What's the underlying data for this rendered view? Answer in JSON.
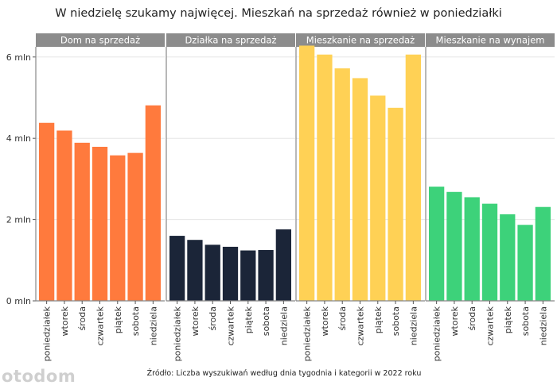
{
  "chart_data": {
    "type": "bar",
    "title": "W niedzielę szukamy najwięcej. Mieszkań na sprzedaż również w poniedziałki",
    "source": "Źródło: Liczba wyszukiwań według dnia tygodnia i kategorii w 2022 roku",
    "logo": "otodom",
    "ylim": [
      0,
      6250000
    ],
    "yticks": [
      0,
      2000000,
      4000000,
      6000000
    ],
    "ytick_labels": [
      "0 mln",
      "2 mln",
      "4 mln",
      "6 mln"
    ],
    "categories": [
      "poniedziałek",
      "wtorek",
      "środa",
      "czwartek",
      "piątek",
      "sobota",
      "niedziela"
    ],
    "panels": [
      {
        "name": "Dom na sprzedaż",
        "color": "#FF7A3D",
        "values": [
          4380000,
          4190000,
          3890000,
          3790000,
          3580000,
          3640000,
          4810000
        ]
      },
      {
        "name": "Działka na sprzedaż",
        "color": "#1B2538",
        "values": [
          1600000,
          1500000,
          1380000,
          1330000,
          1240000,
          1250000,
          1760000
        ]
      },
      {
        "name": "Mieszkanie na sprzedaż",
        "color": "#FFD155",
        "values": [
          6280000,
          6060000,
          5720000,
          5480000,
          5050000,
          4750000,
          6060000
        ]
      },
      {
        "name": "Mieszkanie na wynajem",
        "color": "#3DD27A",
        "values": [
          2810000,
          2680000,
          2550000,
          2390000,
          2130000,
          1870000,
          2310000
        ]
      }
    ],
    "grid": true,
    "legend": "none"
  }
}
